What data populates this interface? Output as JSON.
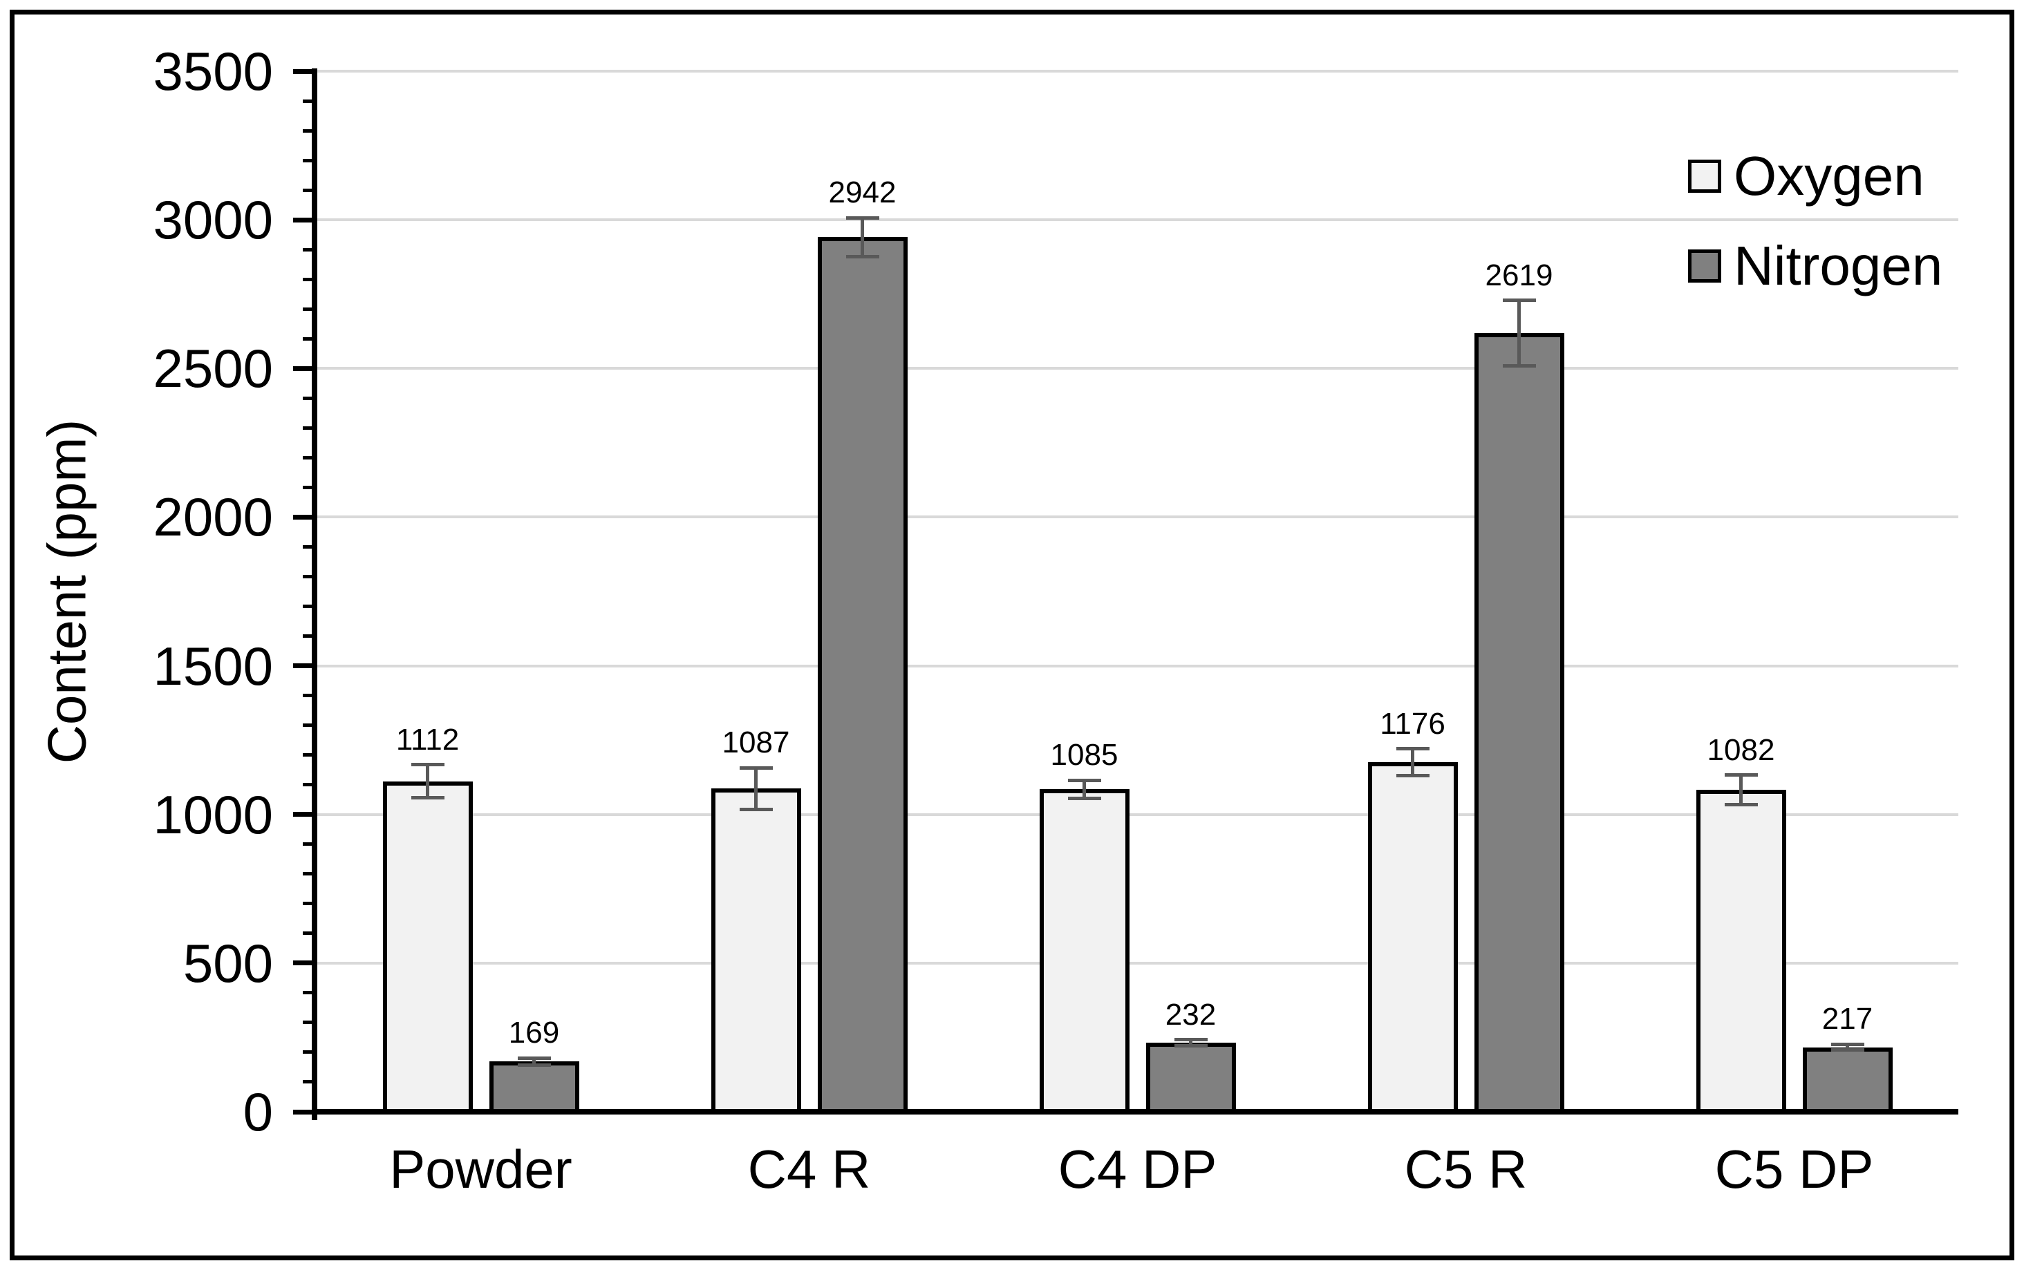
{
  "chart_data": {
    "type": "bar",
    "title": "",
    "xlabel": "",
    "ylabel": "Content (ppm)",
    "ylim": [
      0,
      3500
    ],
    "ytick_interval": 500,
    "yminor_tick_interval": 100,
    "yticks": [
      0,
      500,
      1000,
      1500,
      2000,
      2500,
      3000,
      3500
    ],
    "grid": true,
    "legend_position": "top-right-inside",
    "categories": [
      "Powder",
      "C4 R",
      "C4 DP",
      "C5 R",
      "C5 DP"
    ],
    "series": [
      {
        "name": "Oxygen",
        "fill": "#f2f2f2",
        "values": [
          1112,
          1087,
          1085,
          1176,
          1082
        ],
        "errors": [
          55,
          70,
          30,
          45,
          50
        ]
      },
      {
        "name": "Nitrogen",
        "fill": "#808080",
        "values": [
          169,
          2942,
          232,
          2619,
          217
        ],
        "errors": [
          12,
          65,
          10,
          110,
          10
        ]
      }
    ],
    "value_labels": [
      "1112",
      "1087",
      "1085",
      "1176",
      "1082",
      "169",
      "2942",
      "232",
      "2619",
      "217"
    ],
    "colors": {
      "oxygen_fill": "#f2f2f2",
      "nitrogen_fill": "#808080",
      "bar_border": "#000000",
      "gridline": "#d9d9d9",
      "error_bar": "#595959",
      "axis": "#000000",
      "background": "#ffffff",
      "frame_border": "#000000"
    }
  }
}
